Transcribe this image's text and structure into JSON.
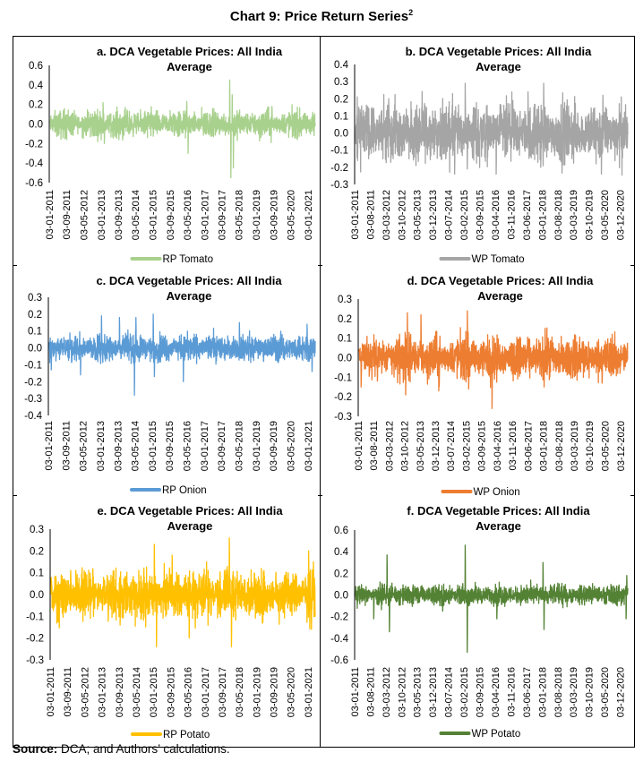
{
  "title": "Chart 9: Price Return Series",
  "title_superscript": "2",
  "source_label": "Source:",
  "source_text": " DCA; and Authors’ calculations.",
  "chart_data": [
    {
      "type": "line",
      "title_lines": [
        "a. DCA Vegetable Prices: All India",
        "Average"
      ],
      "ylim": [
        -0.6,
        0.6
      ],
      "yticks": [
        "0.6",
        "0.4",
        "0.2",
        "0.0",
        "-0.2",
        "-0.4",
        "-0.6"
      ],
      "xlim": [
        "2011-01-03",
        "2021-04-15"
      ],
      "xticks": [
        "03-01-2011",
        "03-09-2011",
        "03-05-2012",
        "03-01-2013",
        "03-09-2013",
        "03-05-2014",
        "03-01-2015",
        "03-09-2015",
        "03-05-2016",
        "03-01-2017",
        "03-09-2017",
        "03-05-2018",
        "03-01-2019",
        "03-09-2019",
        "03-05-2020",
        "03-01-2021"
      ],
      "series": {
        "name": "RP Tomato",
        "color": "#a9d18e",
        "typical_abs_return": 0.09,
        "extremes": [
          [
            "2013-01-20",
            0.22
          ],
          [
            "2013-02-10",
            -0.2
          ],
          [
            "2016-04-20",
            0.23
          ],
          [
            "2016-05-10",
            -0.3
          ],
          [
            "2017-12-20",
            0.45
          ],
          [
            "2018-01-05",
            -0.55
          ],
          [
            "2018-01-25",
            0.3
          ],
          [
            "2018-02-10",
            -0.45
          ],
          [
            "2019-08-10",
            0.18
          ],
          [
            "2021-03-10",
            0.12
          ]
        ]
      }
    },
    {
      "type": "line",
      "title_lines": [
        "b. DCA Vegetable Prices: All India",
        "Average"
      ],
      "ylim": [
        -0.3,
        0.4
      ],
      "yticks": [
        "0.4",
        "0.3",
        "0.2",
        "0.1",
        "0.0",
        "-0.1",
        "-0.2",
        "-0.3"
      ],
      "xlim": [
        "2011-01-03",
        "2021-03-15"
      ],
      "xticks": [
        "03-01-2011",
        "03-08-2011",
        "03-03-2012",
        "03-10-2012",
        "03-05-2013",
        "03-12-2013",
        "03-07-2014",
        "03-02-2015",
        "03-09-2015",
        "03-04-2016",
        "03-11-2016",
        "03-06-2017",
        "03-01-2018",
        "03-08-2018",
        "03-03-2019",
        "03-10-2019",
        "03-05-2020",
        "03-12-2020"
      ],
      "series": {
        "name": "WP Tomato",
        "color": "#a5a5a5",
        "typical_abs_return": 0.11,
        "extremes": [
          [
            "2011-02-01",
            -0.16
          ],
          [
            "2012-04-01",
            0.2
          ],
          [
            "2014-09-20",
            -0.24
          ],
          [
            "2015-02-10",
            0.29
          ],
          [
            "2015-03-10",
            -0.21
          ],
          [
            "2016-04-10",
            -0.24
          ],
          [
            "2017-06-20",
            0.24
          ],
          [
            "2018-01-20",
            0.29
          ],
          [
            "2017-12-10",
            -0.2
          ],
          [
            "2020-04-10",
            0.22
          ],
          [
            "2020-03-20",
            -0.24
          ]
        ]
      }
    },
    {
      "type": "line",
      "title_lines": [
        "c. DCA Vegetable Prices: All India",
        "Average"
      ],
      "ylim": [
        -0.4,
        0.3
      ],
      "yticks": [
        "0.3",
        "0.2",
        "0.1",
        "0.0",
        "-0.1",
        "-0.2",
        "-0.3",
        "-0.4"
      ],
      "xlim": [
        "2011-01-03",
        "2021-04-15"
      ],
      "xticks": [
        "03-01-2011",
        "03-09-2011",
        "03-05-2012",
        "03-01-2013",
        "03-09-2013",
        "03-05-2014",
        "03-01-2015",
        "03-09-2015",
        "03-05-2016",
        "03-01-2017",
        "03-09-2017",
        "03-05-2018",
        "03-01-2019",
        "03-09-2019",
        "03-05-2020",
        "03-01-2021"
      ],
      "series": {
        "name": "RP Onion",
        "color": "#5b9bd5",
        "typical_abs_return": 0.05,
        "extremes": [
          [
            "2011-02-01",
            -0.13
          ],
          [
            "2012-03-20",
            -0.16
          ],
          [
            "2013-01-10",
            0.19
          ],
          [
            "2013-09-20",
            0.18
          ],
          [
            "2014-04-20",
            -0.28
          ],
          [
            "2014-05-10",
            0.18
          ],
          [
            "2015-01-10",
            0.2
          ],
          [
            "2015-01-25",
            -0.17
          ],
          [
            "2016-03-10",
            -0.2
          ],
          [
            "2018-05-10",
            0.15
          ],
          [
            "2020-12-20",
            0.14
          ],
          [
            "2021-03-01",
            -0.14
          ]
        ]
      }
    },
    {
      "type": "line",
      "title_lines": [
        "d. DCA Vegetable Prices: All India",
        "Average"
      ],
      "ylim": [
        -0.3,
        0.3
      ],
      "yticks": [
        "0.3",
        "0.2",
        "0.1",
        "0.0",
        "-0.1",
        "-0.2",
        "-0.3"
      ],
      "xlim": [
        "2011-01-03",
        "2021-03-15"
      ],
      "xticks": [
        "03-01-2011",
        "03-08-2011",
        "03-03-2012",
        "03-10-2012",
        "03-05-2013",
        "03-12-2013",
        "03-07-2014",
        "03-02-2015",
        "03-09-2015",
        "03-04-2016",
        "03-11-2016",
        "03-06-2017",
        "03-01-2018",
        "03-08-2018",
        "03-03-2019",
        "03-10-2019",
        "03-05-2020",
        "03-12-2020"
      ],
      "series": {
        "name": "WP Onion",
        "color": "#ed7d31",
        "typical_abs_return": 0.07,
        "extremes": [
          [
            "2011-02-01",
            -0.15
          ],
          [
            "2012-10-10",
            -0.19
          ],
          [
            "2012-11-01",
            0.23
          ],
          [
            "2013-05-10",
            0.22
          ],
          [
            "2014-01-10",
            -0.17
          ],
          [
            "2015-02-10",
            0.24
          ],
          [
            "2015-03-01",
            -0.16
          ],
          [
            "2016-01-20",
            -0.26
          ],
          [
            "2018-01-10",
            -0.15
          ],
          [
            "2018-01-25",
            0.15
          ],
          [
            "2020-08-10",
            0.12
          ]
        ]
      }
    },
    {
      "type": "line",
      "title_lines": [
        "e. DCA Vegetable Prices: All India",
        "Average"
      ],
      "ylim": [
        -0.3,
        0.3
      ],
      "yticks": [
        "0.3",
        "0.2",
        "0.1",
        "0.0",
        "-0.1",
        "-0.2",
        "-0.3"
      ],
      "xlim": [
        "2011-01-03",
        "2021-04-15"
      ],
      "xticks": [
        "03-01-2011",
        "03-09-2011",
        "03-05-2012",
        "03-01-2013",
        "03-09-2013",
        "03-05-2014",
        "03-01-2015",
        "03-09-2015",
        "03-05-2016",
        "03-01-2017",
        "03-09-2017",
        "03-05-2018",
        "03-01-2019",
        "03-09-2019",
        "03-05-2020",
        "03-01-2021"
      ],
      "series": {
        "name": "RP Potato",
        "color": "#ffc000",
        "typical_abs_return": 0.07,
        "extremes": [
          [
            "2011-10-10",
            0.11
          ],
          [
            "2013-09-10",
            -0.14
          ],
          [
            "2015-01-10",
            0.23
          ],
          [
            "2015-02-10",
            -0.24
          ],
          [
            "2015-09-20",
            0.18
          ],
          [
            "2016-05-20",
            -0.2
          ],
          [
            "2017-01-20",
            0.15
          ],
          [
            "2017-12-10",
            0.26
          ],
          [
            "2018-01-10",
            -0.24
          ],
          [
            "2021-01-10",
            0.2
          ],
          [
            "2021-02-20",
            -0.16
          ],
          [
            "2021-03-20",
            0.15
          ]
        ]
      }
    },
    {
      "type": "line",
      "title_lines": [
        "f. DCA Vegetable Prices: All India",
        "Average"
      ],
      "ylim": [
        -0.6,
        0.6
      ],
      "yticks": [
        "0.6",
        "0.4",
        "0.2",
        "0.0",
        "-0.2",
        "-0.4",
        "-0.6"
      ],
      "xlim": [
        "2011-01-03",
        "2021-03-15"
      ],
      "xticks": [
        "03-01-2011",
        "03-08-2011",
        "03-03-2012",
        "03-10-2012",
        "03-05-2013",
        "03-12-2013",
        "03-07-2014",
        "03-02-2015",
        "03-09-2015",
        "03-04-2016",
        "03-11-2016",
        "03-06-2017",
        "03-01-2018",
        "03-08-2018",
        "03-03-2019",
        "03-10-2019",
        "03-05-2020",
        "03-12-2020"
      ],
      "series": {
        "name": "WP Potato",
        "color": "#548235",
        "typical_abs_return": 0.06,
        "extremes": [
          [
            "2011-09-10",
            -0.22
          ],
          [
            "2012-03-10",
            0.37
          ],
          [
            "2012-04-10",
            -0.34
          ],
          [
            "2014-04-10",
            -0.15
          ],
          [
            "2015-02-10",
            0.46
          ],
          [
            "2015-03-10",
            -0.53
          ],
          [
            "2016-04-20",
            -0.22
          ],
          [
            "2018-01-10",
            0.3
          ],
          [
            "2018-01-25",
            -0.32
          ],
          [
            "2021-02-20",
            -0.22
          ],
          [
            "2021-03-01",
            0.18
          ]
        ]
      }
    }
  ]
}
